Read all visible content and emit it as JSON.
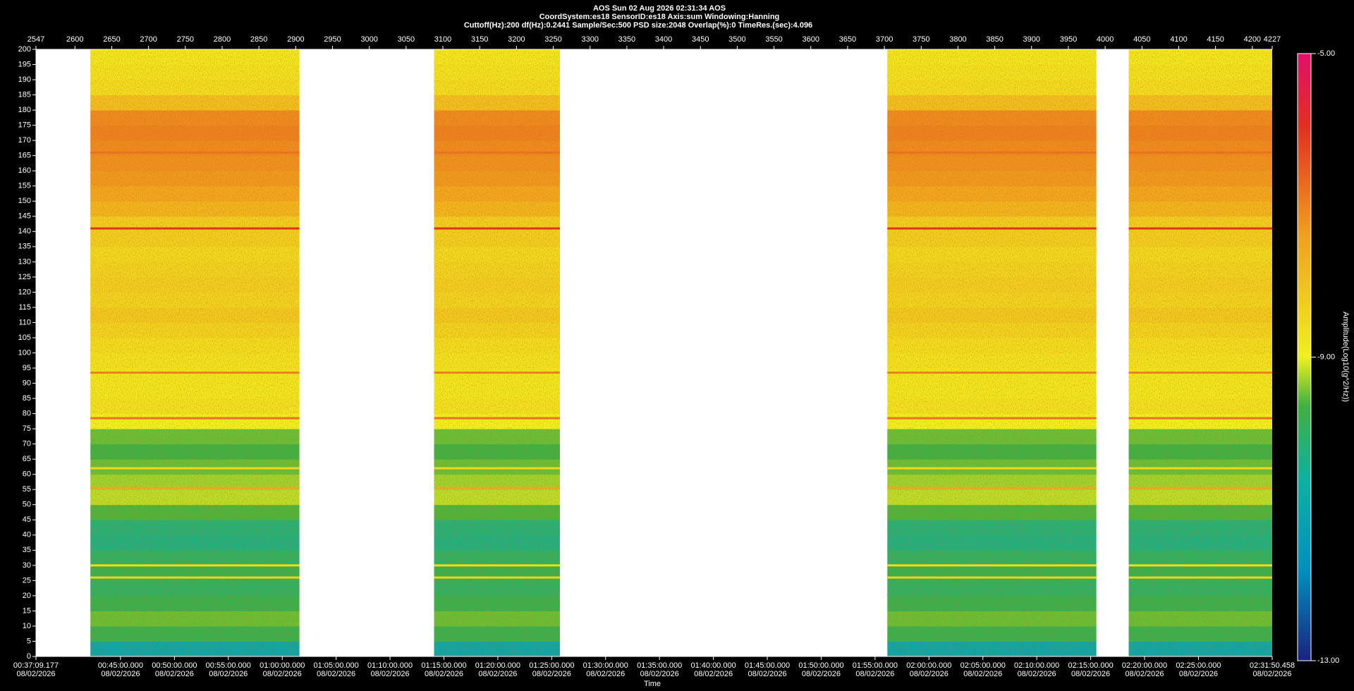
{
  "chart_data": {
    "type": "spectrogram",
    "title": "AOS  Sun 02 Aug 2026 02:31:34  AOS",
    "subtitle": "CoordSystem:es18    SensorID:es18    Axis:sum    Windowing:Hanning",
    "parameters": "Cuttoff(Hz):200      df(Hz):0.2441      Sample/Sec:500      PSD size:2048      Overlap(%):0      TimeRes.(sec):4.096",
    "xlabel": "Time",
    "colorbar_label": "Amplitude(Log10(g^2/Hz))",
    "xlim": [
      2547,
      4227
    ],
    "xticks": [
      2547,
      2600,
      2650,
      2700,
      2750,
      2800,
      2850,
      2900,
      2950,
      3000,
      3050,
      3100,
      3150,
      3200,
      3250,
      3300,
      3350,
      3400,
      3450,
      3500,
      3550,
      3600,
      3650,
      3700,
      3750,
      3800,
      3850,
      3900,
      3950,
      4000,
      4050,
      4100,
      4150,
      4200,
      4227
    ],
    "time_lim": [
      2229.177,
      9110.458
    ],
    "time_ticks": [
      {
        "value": 2229.177,
        "label": "00:37:09.177",
        "date": "08/02/2026"
      },
      {
        "value": 2700,
        "label": "00:45:00.000",
        "date": "08/02/2026"
      },
      {
        "value": 3000,
        "label": "00:50:00.000",
        "date": "08/02/2026"
      },
      {
        "value": 3300,
        "label": "00:55:00.000",
        "date": "08/02/2026"
      },
      {
        "value": 3600,
        "label": "01:00:00.000",
        "date": "08/02/2026"
      },
      {
        "value": 3900,
        "label": "01:05:00.000",
        "date": "08/02/2026"
      },
      {
        "value": 4200,
        "label": "01:10:00.000",
        "date": "08/02/2026"
      },
      {
        "value": 4500,
        "label": "01:15:00.000",
        "date": "08/02/2026"
      },
      {
        "value": 4800,
        "label": "01:20:00.000",
        "date": "08/02/2026"
      },
      {
        "value": 5100,
        "label": "01:25:00.000",
        "date": "08/02/2026"
      },
      {
        "value": 5400,
        "label": "01:30:00.000",
        "date": "08/02/2026"
      },
      {
        "value": 5700,
        "label": "01:35:00.000",
        "date": "08/02/2026"
      },
      {
        "value": 6000,
        "label": "01:40:00.000",
        "date": "08/02/2026"
      },
      {
        "value": 6300,
        "label": "01:45:00.000",
        "date": "08/02/2026"
      },
      {
        "value": 6600,
        "label": "01:50:00.000",
        "date": "08/02/2026"
      },
      {
        "value": 6900,
        "label": "01:55:00.000",
        "date": "08/02/2026"
      },
      {
        "value": 7200,
        "label": "02:00:00.000",
        "date": "08/02/2026"
      },
      {
        "value": 7500,
        "label": "02:05:00.000",
        "date": "08/02/2026"
      },
      {
        "value": 7800,
        "label": "02:10:00.000",
        "date": "08/02/2026"
      },
      {
        "value": 8100,
        "label": "02:15:00.000",
        "date": "08/02/2026"
      },
      {
        "value": 8400,
        "label": "02:20:00.000",
        "date": "08/02/2026"
      },
      {
        "value": 8700,
        "label": "02:25:00.000",
        "date": "08/02/2026"
      },
      {
        "value": 9110.458,
        "label": "02:31:50.458",
        "date": "08/02/2026"
      }
    ],
    "ylim": [
      0,
      200
    ],
    "yticks": [
      0,
      5,
      10,
      15,
      20,
      25,
      30,
      35,
      40,
      45,
      50,
      55,
      60,
      65,
      70,
      75,
      80,
      85,
      90,
      95,
      100,
      105,
      110,
      115,
      120,
      125,
      130,
      135,
      140,
      145,
      150,
      155,
      160,
      165,
      170,
      175,
      180,
      185,
      190,
      195,
      200
    ],
    "clim": [
      -13,
      -5
    ],
    "cticks": [
      {
        "value": -5,
        "label": "-5.00"
      },
      {
        "value": -9,
        "label": "-9.00"
      },
      {
        "value": -13,
        "label": "-13.00"
      }
    ],
    "segments": [
      {
        "start": 2621,
        "end": 2905
      },
      {
        "start": 3088,
        "end": 3259
      },
      {
        "start": 3704,
        "end": 3988
      },
      {
        "start": 4032,
        "end": 4227
      }
    ],
    "bands": {
      "edges": [
        0,
        5,
        10,
        15,
        20,
        25,
        30,
        35,
        40,
        45,
        50,
        55,
        60,
        65,
        70,
        75,
        80,
        85,
        90,
        95,
        100,
        105,
        110,
        115,
        120,
        125,
        130,
        135,
        140,
        145,
        150,
        155,
        160,
        165,
        170,
        175,
        180,
        185,
        190,
        195,
        200
      ],
      "values": [
        -11,
        -9.8,
        -9.5,
        -9.8,
        -10,
        -9.8,
        -10,
        -10.3,
        -10.2,
        -9.6,
        -9.2,
        -9.3,
        -9.5,
        -9.7,
        -9.5,
        -9,
        -8.7,
        -8.8,
        -8.8,
        -8.7,
        -8.6,
        -8.4,
        -8.2,
        -8.4,
        -8.3,
        -8.4,
        -8.5,
        -8.3,
        -8.3,
        -7.8,
        -7.5,
        -7.3,
        -7.2,
        -7.1,
        -7,
        -7.1,
        -8,
        -8.6,
        -8.7,
        -8.8
      ]
    },
    "tonals": [
      {
        "freq": 141,
        "level": -6
      },
      {
        "freq": 166,
        "level": -6.8
      },
      {
        "freq": 93.5,
        "level": -7
      },
      {
        "freq": 78.5,
        "level": -6.8
      },
      {
        "freq": 55.5,
        "level": -7.5
      },
      {
        "freq": 62,
        "level": -8.5
      },
      {
        "freq": 30,
        "level": -8.6
      },
      {
        "freq": 26,
        "level": -8.4
      }
    ]
  }
}
